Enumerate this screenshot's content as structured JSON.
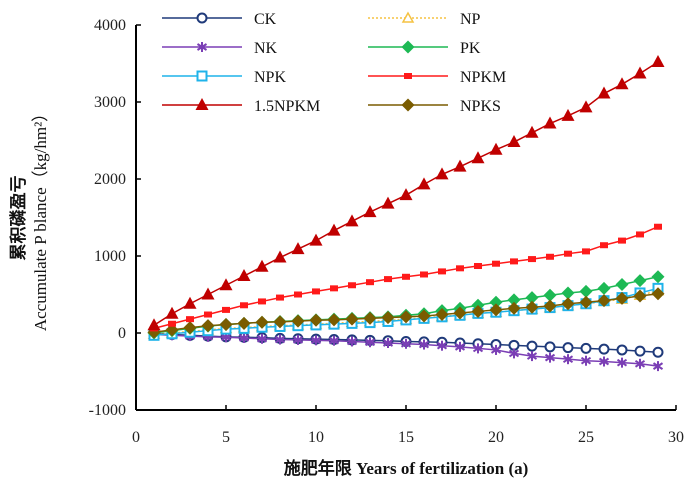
{
  "chart_data": {
    "type": "line",
    "title": "",
    "xlabel": "施肥年限 Years of fertilization (a)",
    "ylabel_cn": "累积磷盈亏",
    "ylabel_en": "Accumulate P blance（kg/hm²）",
    "xlim": [
      0,
      30
    ],
    "ylim": [
      -1000,
      4000
    ],
    "xticks": [
      0,
      5,
      10,
      15,
      20,
      25,
      30
    ],
    "xtick_labels": [
      "0",
      "5",
      "10",
      "15",
      "20",
      "25",
      "30"
    ],
    "yticks": [
      -1000,
      0,
      1000,
      2000,
      3000,
      4000
    ],
    "ytick_labels": [
      "-1000",
      "0",
      "1000",
      "2000",
      "3000",
      "4000"
    ],
    "grid": false,
    "legend_position": "top",
    "x": [
      1,
      2,
      3,
      4,
      5,
      6,
      7,
      8,
      9,
      10,
      11,
      12,
      13,
      14,
      15,
      16,
      17,
      18,
      19,
      20,
      21,
      22,
      23,
      24,
      25,
      26,
      27,
      28,
      29
    ],
    "series": [
      {
        "name": "CK",
        "color": "#1f3a7a",
        "marker": "circle-open",
        "values": [
          -10,
          -20,
          -30,
          -40,
          -50,
          -55,
          -60,
          -70,
          -75,
          -80,
          -85,
          -90,
          -95,
          -100,
          -110,
          -115,
          -120,
          -130,
          -140,
          -150,
          -160,
          -170,
          -180,
          -190,
          -200,
          -210,
          -220,
          -235,
          -250
        ]
      },
      {
        "name": "NP",
        "color": "#f5c242",
        "marker": "triangle-open",
        "values": [
          -15,
          0,
          20,
          40,
          60,
          70,
          85,
          95,
          105,
          115,
          125,
          140,
          150,
          165,
          180,
          200,
          215,
          235,
          255,
          270,
          290,
          310,
          330,
          355,
          380,
          410,
          440,
          490,
          550
        ]
      },
      {
        "name": "NK",
        "color": "#7b3fb5",
        "marker": "asterisk",
        "values": [
          -20,
          -30,
          -40,
          -50,
          -55,
          -65,
          -75,
          -85,
          -90,
          -95,
          -100,
          -110,
          -120,
          -130,
          -140,
          -150,
          -165,
          -180,
          -200,
          -220,
          -265,
          -300,
          -320,
          -340,
          -360,
          -370,
          -385,
          -400,
          -430
        ]
      },
      {
        "name": "PK",
        "color": "#1db954",
        "marker": "diamond",
        "values": [
          0,
          30,
          60,
          90,
          110,
          125,
          140,
          150,
          160,
          170,
          180,
          190,
          200,
          210,
          230,
          250,
          290,
          320,
          360,
          400,
          430,
          460,
          490,
          520,
          540,
          580,
          630,
          680,
          730
        ]
      },
      {
        "name": "NPK",
        "color": "#1fb3ea",
        "marker": "square-open",
        "values": [
          -30,
          -10,
          10,
          30,
          50,
          60,
          75,
          85,
          95,
          105,
          115,
          125,
          135,
          150,
          170,
          190,
          210,
          230,
          255,
          270,
          290,
          310,
          330,
          355,
          380,
          420,
          460,
          520,
          580
        ]
      },
      {
        "name": "NPKM",
        "color": "#ff1a1a",
        "marker": "square-small",
        "values": [
          60,
          120,
          180,
          240,
          300,
          360,
          410,
          460,
          500,
          540,
          580,
          620,
          660,
          700,
          730,
          760,
          800,
          840,
          870,
          900,
          930,
          960,
          990,
          1030,
          1060,
          1140,
          1200,
          1280,
          1380
        ]
      },
      {
        "name": "1.5NPKM",
        "color": "#c00000",
        "marker": "triangle",
        "values": [
          100,
          250,
          380,
          500,
          620,
          740,
          860,
          980,
          1090,
          1200,
          1330,
          1450,
          1570,
          1680,
          1790,
          1930,
          2060,
          2160,
          2270,
          2380,
          2480,
          2600,
          2720,
          2820,
          2930,
          3110,
          3230,
          3370,
          3520
        ]
      },
      {
        "name": "NPKS",
        "color": "#7a5c00",
        "marker": "diamond",
        "values": [
          10,
          40,
          70,
          95,
          110,
          125,
          140,
          145,
          155,
          165,
          170,
          180,
          190,
          200,
          210,
          220,
          240,
          260,
          280,
          300,
          320,
          335,
          350,
          380,
          400,
          420,
          450,
          480,
          510
        ]
      }
    ]
  }
}
